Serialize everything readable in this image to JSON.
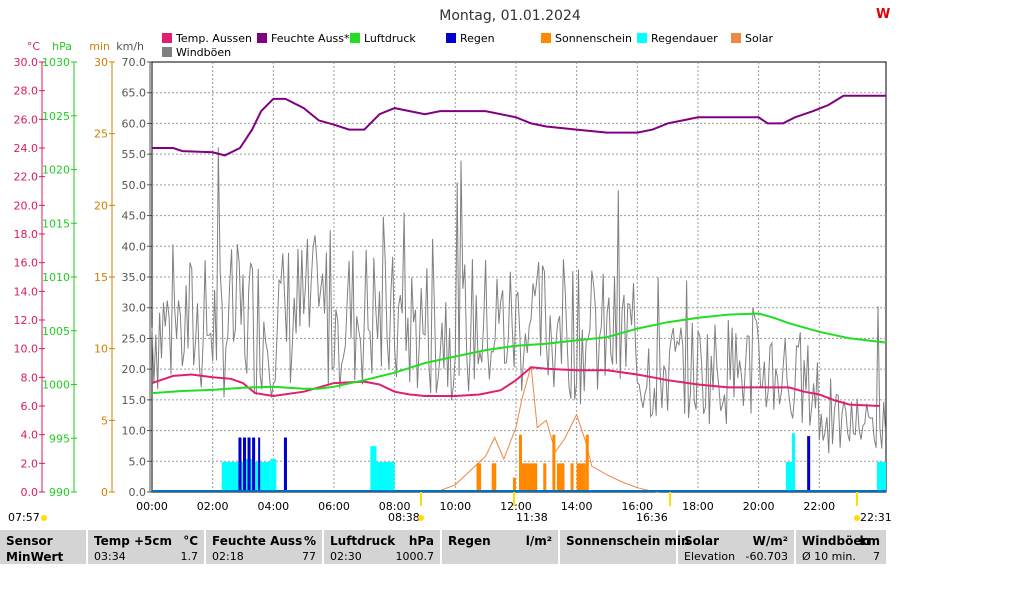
{
  "logo_text": "W",
  "chart_data": {
    "type": "line",
    "title": "Montag, 01.01.2024",
    "x_ticks": [
      "00:00",
      "02:00",
      "04:00",
      "06:00",
      "08:00",
      "10:00",
      "12:00",
      "14:00",
      "16:00",
      "18:00",
      "20:00",
      "22:00"
    ],
    "x_range_hours": [
      0,
      24.2
    ],
    "axes": [
      {
        "unit": "°C",
        "color": "#d81b60",
        "ticks": [
          "0.0",
          "2.0",
          "4.0",
          "6.0",
          "8.0",
          "10.0",
          "12.0",
          "14.0",
          "16.0",
          "18.0",
          "20.0",
          "22.0",
          "24.0",
          "26.0",
          "28.0",
          "30.0"
        ],
        "range": [
          0,
          30
        ]
      },
      {
        "unit": "hPa",
        "color": "#22cc22",
        "ticks": [
          "990",
          "995",
          "1000",
          "1005",
          "1010",
          "1015",
          "1020",
          "1025",
          "1030"
        ],
        "range": [
          990,
          1030
        ]
      },
      {
        "unit": "min",
        "color": "#d08000",
        "ticks": [
          "0",
          "5",
          "10",
          "15",
          "20",
          "25",
          "30"
        ],
        "range": [
          0,
          30
        ]
      },
      {
        "unit": "km/h",
        "color": "#555555",
        "ticks": [
          "0.0",
          "5.0",
          "10.0",
          "15.0",
          "20.0",
          "25.0",
          "30.0",
          "35.0",
          "40.0",
          "45.0",
          "50.0",
          "55.0",
          "60.0",
          "65.0",
          "70.0"
        ],
        "range": [
          0,
          70
        ]
      }
    ],
    "legend": [
      {
        "name": "Temp. Aussen",
        "color": "#e0206e"
      },
      {
        "name": "Feuchte Auss*",
        "color": "#800080"
      },
      {
        "name": "Luftdruck",
        "color": "#22dd22"
      },
      {
        "name": "Regen",
        "color": "#0000cc"
      },
      {
        "name": "Sonnenschein",
        "color": "#ff8800"
      },
      {
        "name": "Regendauer",
        "color": "#00ffff"
      },
      {
        "name": "Solar",
        "color": "#ee8844"
      },
      {
        "name": "Windböen",
        "color": "#808080"
      }
    ],
    "series": [
      {
        "name": "Temp. Aussen",
        "axis": 0,
        "color": "#e0206e",
        "points": [
          [
            0,
            7.6
          ],
          [
            0.7,
            8.1
          ],
          [
            1.3,
            8.2
          ],
          [
            2,
            8.0
          ],
          [
            2.6,
            7.9
          ],
          [
            3.0,
            7.6
          ],
          [
            3.4,
            6.9
          ],
          [
            4.0,
            6.7
          ],
          [
            5.0,
            7.0
          ],
          [
            6.0,
            7.6
          ],
          [
            7.0,
            7.7
          ],
          [
            7.5,
            7.5
          ],
          [
            8.0,
            7.0
          ],
          [
            8.5,
            6.8
          ],
          [
            9.0,
            6.7
          ],
          [
            10.0,
            6.7
          ],
          [
            10.8,
            6.8
          ],
          [
            11.5,
            7.1
          ],
          [
            12.0,
            7.8
          ],
          [
            12.5,
            8.7
          ],
          [
            13.0,
            8.6
          ],
          [
            14.0,
            8.5
          ],
          [
            15.0,
            8.5
          ],
          [
            16.0,
            8.2
          ],
          [
            16.5,
            8.0
          ],
          [
            17.0,
            7.8
          ],
          [
            18.0,
            7.5
          ],
          [
            19.0,
            7.3
          ],
          [
            20.0,
            7.3
          ],
          [
            21.0,
            7.3
          ],
          [
            21.5,
            7.0
          ],
          [
            22.0,
            6.8
          ],
          [
            22.5,
            6.4
          ],
          [
            23.0,
            6.1
          ],
          [
            24.0,
            6.0
          ]
        ]
      },
      {
        "name": "Feuchte Auss*",
        "axis": 3,
        "color": "#800080",
        "points": [
          [
            0,
            56
          ],
          [
            0.7,
            56
          ],
          [
            1.0,
            55.5
          ],
          [
            2.0,
            55.3
          ],
          [
            2.4,
            54.8
          ],
          [
            2.9,
            56
          ],
          [
            3.3,
            59
          ],
          [
            3.6,
            62
          ],
          [
            4.0,
            64
          ],
          [
            4.4,
            64
          ],
          [
            5.0,
            62.5
          ],
          [
            5.5,
            60.5
          ],
          [
            6.0,
            59.8
          ],
          [
            6.5,
            59
          ],
          [
            7.0,
            59
          ],
          [
            7.5,
            61.5
          ],
          [
            8.0,
            62.5
          ],
          [
            9.0,
            61.5
          ],
          [
            9.5,
            62
          ],
          [
            10.5,
            62
          ],
          [
            11.0,
            62
          ],
          [
            12.0,
            61
          ],
          [
            12.5,
            60
          ],
          [
            13.0,
            59.5
          ],
          [
            14.0,
            59
          ],
          [
            15.0,
            58.5
          ],
          [
            16.0,
            58.5
          ],
          [
            16.5,
            59
          ],
          [
            17.0,
            60
          ],
          [
            17.5,
            60.5
          ],
          [
            18.0,
            61
          ],
          [
            19.0,
            61
          ],
          [
            19.5,
            61
          ],
          [
            20.0,
            61
          ],
          [
            20.3,
            60
          ],
          [
            20.8,
            60
          ],
          [
            21.2,
            61
          ],
          [
            21.8,
            62
          ],
          [
            22.3,
            63
          ],
          [
            22.8,
            64.5
          ],
          [
            23.3,
            64.5
          ],
          [
            24.2,
            64.5
          ]
        ]
      },
      {
        "name": "Luftdruck",
        "axis": 1,
        "color": "#22dd22",
        "points": [
          [
            0,
            999.2
          ],
          [
            1.0,
            999.4
          ],
          [
            2.0,
            999.5
          ],
          [
            2.5,
            999.6
          ],
          [
            3.0,
            999.7
          ],
          [
            4.0,
            999.8
          ],
          [
            5.0,
            999.6
          ],
          [
            5.5,
            999.6
          ],
          [
            6.0,
            999.8
          ],
          [
            7.0,
            1000.4
          ],
          [
            8.0,
            1001.1
          ],
          [
            9.0,
            1002.0
          ],
          [
            10.0,
            1002.6
          ],
          [
            11.0,
            1003.2
          ],
          [
            12.0,
            1003.6
          ],
          [
            13.0,
            1003.8
          ],
          [
            14.0,
            1004.1
          ],
          [
            15.0,
            1004.4
          ],
          [
            16.0,
            1005.2
          ],
          [
            17.0,
            1005.8
          ],
          [
            18.0,
            1006.2
          ],
          [
            19.0,
            1006.5
          ],
          [
            20.0,
            1006.6
          ],
          [
            20.5,
            1006.2
          ],
          [
            21.0,
            1005.7
          ],
          [
            22.0,
            1004.9
          ],
          [
            23.0,
            1004.3
          ],
          [
            24.2,
            1003.9
          ]
        ]
      }
    ],
    "windboeen": {
      "axis": 3,
      "color": "#808080",
      "points_per_hour": 16,
      "seed": 7
    },
    "bars": [
      {
        "name": "Regendauer",
        "axis": 2,
        "color": "#00ffff",
        "ranges": [
          [
            2.3,
            2.8,
            2.1
          ],
          [
            2.8,
            3.1,
            2.1
          ],
          [
            3.1,
            3.3,
            2.3
          ],
          [
            3.4,
            3.9,
            2.1
          ],
          [
            3.9,
            4.1,
            2.3
          ],
          [
            7.2,
            7.4,
            3.2
          ],
          [
            7.4,
            8.0,
            2.1
          ],
          [
            20.9,
            21.1,
            2.1
          ],
          [
            21.1,
            21.2,
            4.1
          ],
          [
            23.9,
            24.2,
            2.1
          ]
        ]
      },
      {
        "name": "Regen",
        "axis": 2,
        "color": "#0000cc",
        "ranges": [
          [
            2.85,
            2.95,
            3.8
          ],
          [
            3.0,
            3.1,
            3.8
          ],
          [
            3.15,
            3.25,
            3.8
          ],
          [
            3.3,
            3.4,
            3.8
          ],
          [
            3.5,
            3.55,
            3.8
          ],
          [
            4.35,
            4.45,
            3.8
          ],
          [
            21.6,
            21.7,
            3.9
          ]
        ]
      },
      {
        "name": "Sonnenschein",
        "axis": 2,
        "color": "#ff8800",
        "ranges": [
          [
            10.7,
            10.85,
            2.0
          ],
          [
            11.2,
            11.35,
            2.0
          ],
          [
            11.9,
            12.0,
            1.0
          ],
          [
            12.1,
            12.2,
            4.0
          ],
          [
            12.2,
            12.7,
            2.0
          ],
          [
            12.9,
            13.0,
            2.0
          ],
          [
            13.2,
            13.3,
            4.0
          ],
          [
            13.35,
            13.6,
            2.0
          ],
          [
            13.8,
            13.9,
            2.0
          ],
          [
            14.0,
            14.3,
            2.0
          ],
          [
            14.3,
            14.4,
            4.0
          ]
        ]
      }
    ],
    "solar_points": [
      [
        9.5,
        0.1
      ],
      [
        10.0,
        0.5
      ],
      [
        10.5,
        1.5
      ],
      [
        11.0,
        2.5
      ],
      [
        11.3,
        3.8
      ],
      [
        11.6,
        2.3
      ],
      [
        12.0,
        4.5
      ],
      [
        12.2,
        6.5
      ],
      [
        12.5,
        8.8
      ],
      [
        12.7,
        4.5
      ],
      [
        13.0,
        5.0
      ],
      [
        13.3,
        2.8
      ],
      [
        13.6,
        3.7
      ],
      [
        14.0,
        5.4
      ],
      [
        14.3,
        3.5
      ],
      [
        14.5,
        1.8
      ],
      [
        15.0,
        1.2
      ],
      [
        15.5,
        0.7
      ],
      [
        16.0,
        0.3
      ],
      [
        16.5,
        0.05
      ],
      [
        16.7,
        0
      ]
    ],
    "time_markers": {
      "left": "07:57",
      "sunrise": "08:38",
      "noon": "11:38",
      "sunset": "16:36",
      "right": "22:31"
    }
  },
  "table": [
    {
      "header": "Sensor",
      "unit": "",
      "label": "MinWert",
      "value": ""
    },
    {
      "header": "Temp +5cm",
      "unit": "°C",
      "label": "03:34",
      "value": "1.7"
    },
    {
      "header": "Feuchte Auss",
      "unit": "%",
      "label": "02:18",
      "value": "77"
    },
    {
      "header": "Luftdruck",
      "unit": "hPa",
      "label": "02:30",
      "value": "1000.7"
    },
    {
      "header": "Regen",
      "unit": "l/m²",
      "label": "",
      "value": ""
    },
    {
      "header": "Sonnenschein min",
      "unit": "",
      "label": "",
      "value": ""
    },
    {
      "header": "Solar",
      "unit": "W/m²",
      "label": "Elevation",
      "value": "-60.703"
    },
    {
      "header": "Windböen",
      "unit": "km",
      "label": "Ø 10 min.",
      "value": "7"
    }
  ]
}
